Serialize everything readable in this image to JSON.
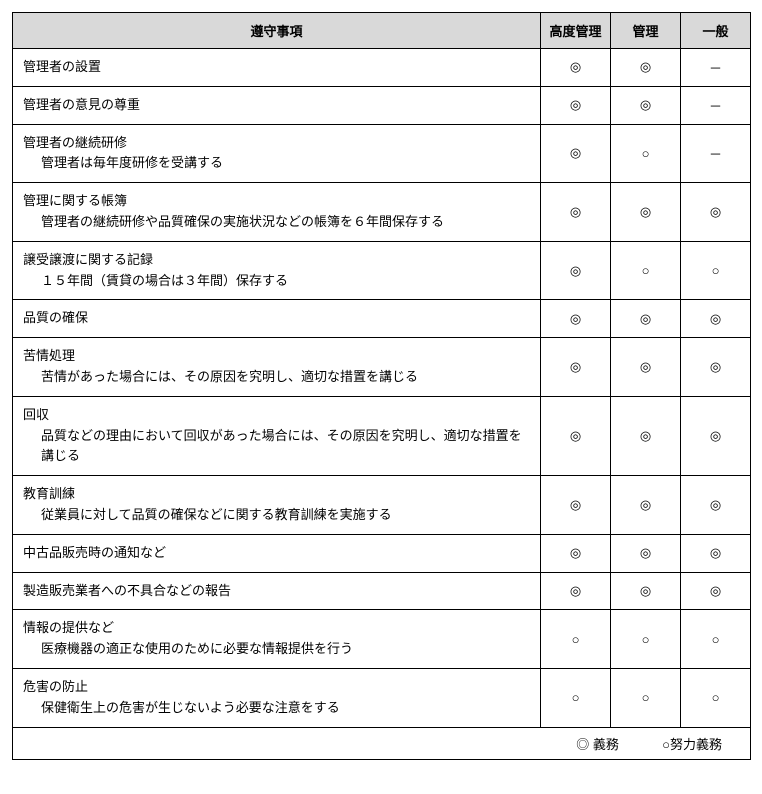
{
  "table": {
    "headers": {
      "item": "遵守事項",
      "col1": "高度管理",
      "col2": "管理",
      "col3": "一般"
    },
    "rows": [
      {
        "title": "管理者の設置",
        "sub": "",
        "c1": "◎",
        "c2": "◎",
        "c3": "－"
      },
      {
        "title": "管理者の意見の尊重",
        "sub": "",
        "c1": "◎",
        "c2": "◎",
        "c3": "－"
      },
      {
        "title": "管理者の継続研修",
        "sub": "管理者は毎年度研修を受講する",
        "c1": "◎",
        "c2": "○",
        "c3": "－"
      },
      {
        "title": "管理に関する帳簿",
        "sub": "管理者の継続研修や品質確保の実施状況などの帳簿を６年間保存する",
        "c1": "◎",
        "c2": "◎",
        "c3": "◎"
      },
      {
        "title": "譲受譲渡に関する記録",
        "sub": "１５年間（賃貸の場合は３年間）保存する",
        "c1": "◎",
        "c2": "○",
        "c3": "○"
      },
      {
        "title": "品質の確保",
        "sub": "",
        "c1": "◎",
        "c2": "◎",
        "c3": "◎"
      },
      {
        "title": "苦情処理",
        "sub": "苦情があった場合には、その原因を究明し、適切な措置を講じる",
        "c1": "◎",
        "c2": "◎",
        "c3": "◎"
      },
      {
        "title": "回収",
        "sub": "品質などの理由において回収があった場合には、その原因を究明し、適切な措置を講じる",
        "c1": "◎",
        "c2": "◎",
        "c3": "◎"
      },
      {
        "title": "教育訓練",
        "sub": "従業員に対して品質の確保などに関する教育訓練を実施する",
        "c1": "◎",
        "c2": "◎",
        "c3": "◎"
      },
      {
        "title": "中古品販売時の通知など",
        "sub": "",
        "c1": "◎",
        "c2": "◎",
        "c3": "◎"
      },
      {
        "title": "製造販売業者への不具合などの報告",
        "sub": "",
        "c1": "◎",
        "c2": "◎",
        "c3": "◎"
      },
      {
        "title": "情報の提供など",
        "sub": "医療機器の適正な使用のために必要な情報提供を行う",
        "c1": "○",
        "c2": "○",
        "c3": "○"
      },
      {
        "title": "危害の防止",
        "sub": "保健衛生上の危害が生じないよう必要な注意をする",
        "c1": "○",
        "c2": "○",
        "c3": "○"
      }
    ],
    "legend": {
      "duty": "◎ 義務",
      "effort": "○努力義務"
    }
  },
  "style": {
    "header_bg": "#d9d9d9",
    "border_color": "#000000",
    "font_size_pt": 13
  }
}
